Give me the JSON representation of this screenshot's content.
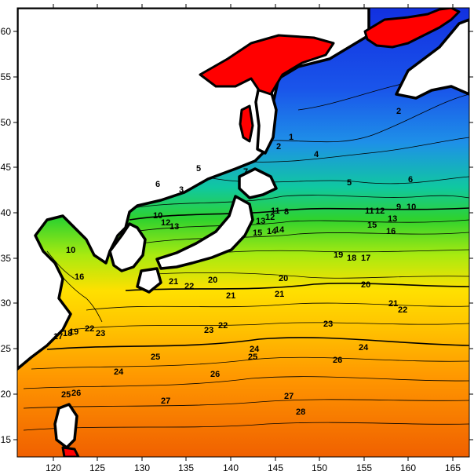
{
  "map": {
    "x_ticks": [
      "120",
      "125",
      "130",
      "135",
      "140",
      "145",
      "150",
      "155",
      "160",
      "165"
    ],
    "y_ticks": [
      "60",
      "55",
      "50",
      "45",
      "40",
      "35",
      "30",
      "25",
      "20",
      "15"
    ],
    "contour_labels": [
      "1",
      "2",
      "2",
      "3",
      "4",
      "5",
      "5",
      "6",
      "6",
      "7",
      "8",
      "9",
      "10",
      "10",
      "10",
      "11",
      "11",
      "12",
      "12",
      "12",
      "13",
      "13",
      "13",
      "14",
      "14",
      "15",
      "15",
      "16",
      "16",
      "17",
      "17",
      "18",
      "18",
      "19",
      "19",
      "20",
      "20",
      "20",
      "21",
      "21",
      "21",
      "21",
      "22",
      "22",
      "22",
      "22",
      "23",
      "23",
      "23",
      "24",
      "24",
      "24",
      "25",
      "25",
      "25",
      "26",
      "26",
      "26",
      "27",
      "27",
      "28"
    ],
    "colors": {
      "sea_warm": "#f26a00",
      "sea_orange": "#ff9a00",
      "sea_yellow": "#ffd200",
      "sea_lime": "#c9f000",
      "sea_green": "#2ed22e",
      "sea_teal": "#00b0c8",
      "sea_sky": "#1e8fe8",
      "sea_blue": "#1438e6",
      "land": "#ffffff",
      "ice": "#ff0000",
      "coast": "#000000"
    }
  }
}
